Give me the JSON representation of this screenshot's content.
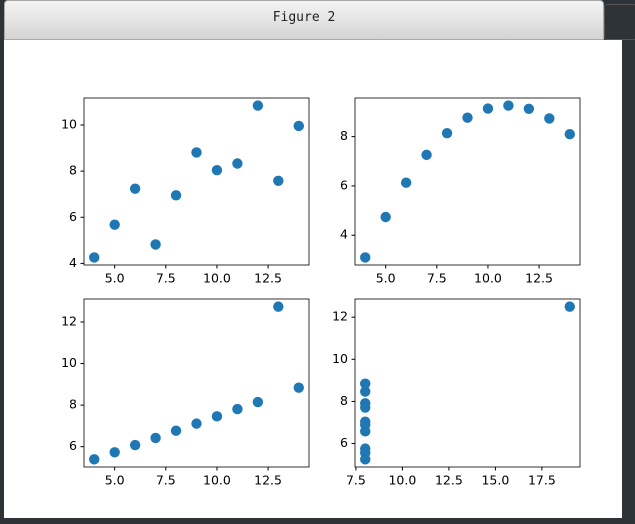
{
  "window": {
    "title": "Figure 2"
  },
  "chart_data": [
    {
      "type": "scatter",
      "color": "#1f77b4",
      "x": [
        10,
        8,
        13,
        9,
        11,
        14,
        6,
        4,
        12,
        7,
        5
      ],
      "values": [
        8.04,
        6.95,
        7.58,
        8.81,
        8.33,
        9.96,
        7.24,
        4.26,
        10.84,
        4.82,
        5.68
      ],
      "xlim": [
        3.5,
        14.5
      ],
      "ylim": [
        3.931,
        11.169
      ],
      "xticks": [
        {
          "value": 5,
          "label": "5.0"
        },
        {
          "value": 7.5,
          "label": "7.5"
        },
        {
          "value": 10,
          "label": "10.0"
        },
        {
          "value": 12.5,
          "label": "12.5"
        }
      ],
      "yticks": [
        4,
        6,
        8,
        10
      ]
    },
    {
      "type": "scatter",
      "color": "#1f77b4",
      "x": [
        10,
        8,
        13,
        9,
        11,
        14,
        6,
        4,
        12,
        7,
        5
      ],
      "values": [
        9.14,
        8.14,
        8.74,
        8.77,
        9.26,
        8.1,
        6.13,
        3.1,
        9.13,
        7.26,
        4.74
      ],
      "xlim": [
        3.5,
        14.5
      ],
      "ylim": [
        2.792,
        9.568
      ],
      "xticks": [
        {
          "value": 5,
          "label": "5.0"
        },
        {
          "value": 7.5,
          "label": "7.5"
        },
        {
          "value": 10,
          "label": "10.0"
        },
        {
          "value": 12.5,
          "label": "12.5"
        }
      ],
      "yticks": [
        4,
        6,
        8
      ]
    },
    {
      "type": "scatter",
      "color": "#1f77b4",
      "x": [
        10,
        8,
        13,
        9,
        11,
        14,
        6,
        4,
        12,
        7,
        5
      ],
      "values": [
        7.46,
        6.77,
        12.74,
        7.11,
        7.81,
        8.84,
        6.08,
        5.39,
        8.15,
        6.42,
        5.73
      ],
      "xlim": [
        3.5,
        14.5
      ],
      "ylim": [
        5.0225,
        13.1075
      ],
      "xticks": [
        {
          "value": 5,
          "label": "5.0"
        },
        {
          "value": 7.5,
          "label": "7.5"
        },
        {
          "value": 10,
          "label": "10.0"
        },
        {
          "value": 12.5,
          "label": "12.5"
        }
      ],
      "yticks": [
        6,
        8,
        10,
        12
      ]
    },
    {
      "type": "scatter",
      "color": "#1f77b4",
      "x": [
        8,
        8,
        8,
        8,
        8,
        8,
        8,
        19,
        8,
        8,
        8
      ],
      "values": [
        6.58,
        5.76,
        7.71,
        8.84,
        8.47,
        7.04,
        5.25,
        12.5,
        5.56,
        7.91,
        6.89
      ],
      "xlim": [
        7.45,
        19.55
      ],
      "ylim": [
        4.8875,
        12.8625
      ],
      "xticks": [
        {
          "value": 7.5,
          "label": "7.5"
        },
        {
          "value": 10,
          "label": "10.0"
        },
        {
          "value": 12.5,
          "label": "12.5"
        },
        {
          "value": 15,
          "label": "15.0"
        },
        {
          "value": 17.5,
          "label": "17.5"
        }
      ],
      "yticks": [
        6,
        8,
        10,
        12
      ]
    }
  ]
}
